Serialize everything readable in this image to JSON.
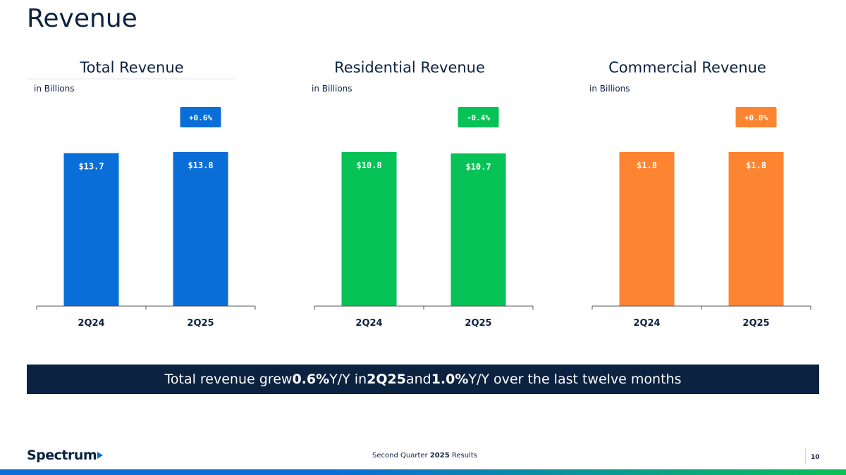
{
  "page": {
    "title": "Revenue",
    "banner_parts": [
      "Total revenue grew ",
      "0.6%",
      " Y/Y in ",
      "2Q25",
      " and ",
      "1.0%",
      " Y/Y over the last twelve months"
    ],
    "logo": "Spectrum",
    "footer_prefix": "Second Quarter ",
    "footer_year": "2025",
    "footer_suffix": " Results",
    "page_number": "10"
  },
  "chart_data": [
    {
      "type": "bar",
      "title": "Total Revenue",
      "unit_label": "in Billions",
      "categories": [
        "2Q24",
        "2Q25"
      ],
      "values": [
        13.7,
        13.8
      ],
      "value_labels": [
        "$13.7",
        "$13.8"
      ],
      "change_label": "+0.6%",
      "color": "#0a6ed8"
    },
    {
      "type": "bar",
      "title": "Residential Revenue",
      "unit_label": "in Billions",
      "categories": [
        "2Q24",
        "2Q25"
      ],
      "values": [
        10.8,
        10.7
      ],
      "value_labels": [
        "$10.8",
        "$10.7"
      ],
      "change_label": "-0.4%",
      "color": "#07c256"
    },
    {
      "type": "bar",
      "title": "Commercial Revenue",
      "unit_label": "in Billions",
      "categories": [
        "2Q24",
        "2Q25"
      ],
      "values": [
        1.8,
        1.8
      ],
      "value_labels": [
        "$1.8",
        "$1.8"
      ],
      "change_label": "+0.8%",
      "color": "#fd8431"
    }
  ]
}
